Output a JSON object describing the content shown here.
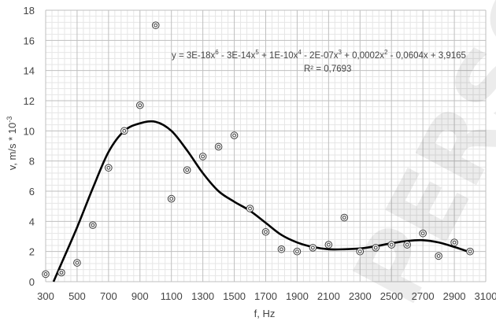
{
  "chart_data": {
    "type": "scatter",
    "xlabel": "f, Hz",
    "ylabel": "v, m/s * 10",
    "ylabel_exp": "-3",
    "xlim": [
      300,
      3100
    ],
    "ylim": [
      0,
      18
    ],
    "xticks": [
      "300",
      "500",
      "700",
      "900",
      "1100",
      "1300",
      "1500",
      "1700",
      "1900",
      "2100",
      "2300",
      "2500",
      "2700",
      "2900",
      "3100"
    ],
    "yticks": [
      "0",
      "2",
      "4",
      "6",
      "8",
      "10",
      "12",
      "14",
      "16",
      "18"
    ],
    "grid": {
      "major": true,
      "minor": true
    },
    "watermark": "PERSONAL",
    "equation": {
      "line1_parts": [
        {
          "t": "y = 3E-18x",
          "sup": false
        },
        {
          "t": "6",
          "sup": true
        },
        {
          "t": " - 3E-14x",
          "sup": false
        },
        {
          "t": "5",
          "sup": true
        },
        {
          "t": " + 1E-10x",
          "sup": false
        },
        {
          "t": "4",
          "sup": true
        },
        {
          "t": " - 2E-07x",
          "sup": false
        },
        {
          "t": "3",
          "sup": true
        },
        {
          "t": " + 0,0002x",
          "sup": false
        },
        {
          "t": "2",
          "sup": true
        },
        {
          "t": " - 0,0604x + 3,9165",
          "sup": false
        }
      ],
      "r2": "R² = 0,7693"
    },
    "series": [
      {
        "marker": "double-circle",
        "x": [
          300,
          400,
          500,
          600,
          700,
          800,
          900,
          1000,
          1100,
          1200,
          1300,
          1400,
          1500,
          1600,
          1700,
          1800,
          1900,
          2000,
          2100,
          2200,
          2300,
          2400,
          2500,
          2600,
          2700,
          2800,
          2900,
          3000
        ],
        "y": [
          0.5,
          0.6,
          1.25,
          3.75,
          7.55,
          10.0,
          11.7,
          17.0,
          5.5,
          7.4,
          8.3,
          8.95,
          9.7,
          4.85,
          3.3,
          2.15,
          2.0,
          2.25,
          2.45,
          4.25,
          2.0,
          2.25,
          2.45,
          2.45,
          3.2,
          1.7,
          2.6,
          2.0
        ]
      },
      {
        "type": "trendline",
        "x": [
          350,
          400,
          500,
          600,
          700,
          800,
          900,
          1000,
          1100,
          1200,
          1300,
          1400,
          1500,
          1600,
          1700,
          1800,
          1900,
          2000,
          2100,
          2200,
          2300,
          2400,
          2500,
          2600,
          2700,
          2800,
          2900,
          3000
        ],
        "y": [
          0.0,
          1.2,
          3.6,
          6.2,
          8.6,
          10.0,
          10.5,
          10.6,
          10.0,
          8.7,
          7.2,
          6.0,
          5.3,
          4.7,
          3.9,
          3.1,
          2.6,
          2.3,
          2.15,
          2.15,
          2.2,
          2.35,
          2.55,
          2.7,
          2.75,
          2.6,
          2.3,
          1.95
        ]
      }
    ]
  }
}
